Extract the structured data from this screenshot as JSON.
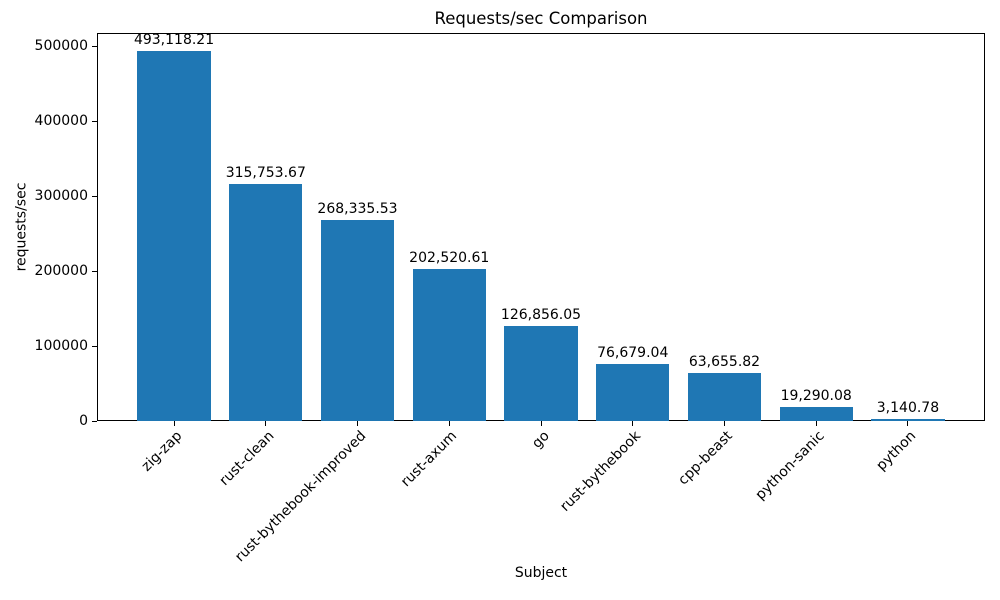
{
  "chart_data": {
    "type": "bar",
    "title": "Requests/sec Comparison",
    "xlabel": "Subject",
    "ylabel": "requests/sec",
    "categories": [
      "zig-zap",
      "rust-clean",
      "rust-bythebook-improved",
      "rust-axum",
      "go",
      "rust-bythebook",
      "cpp-beast",
      "python-sanic",
      "python"
    ],
    "values": [
      493118.21,
      315753.67,
      268335.53,
      202520.61,
      126856.05,
      76679.04,
      63655.82,
      19290.08,
      3140.78
    ],
    "value_labels": [
      "493,118.21",
      "315,753.67",
      "268,335.53",
      "202,520.61",
      "126,856.05",
      "76,679.04",
      "63,655.82",
      "19,290.08",
      "3,140.78"
    ],
    "yticks": [
      0,
      100000,
      200000,
      300000,
      400000,
      500000
    ],
    "ytick_labels": [
      "0",
      "100000",
      "200000",
      "300000",
      "400000",
      "500000"
    ],
    "ylim": [
      0,
      517774
    ],
    "bar_color": "#1f77b4",
    "text_color": "#000000",
    "grid": false,
    "legend": null,
    "tick_label_rotation": 45,
    "bar_width_fraction": 0.8
  }
}
